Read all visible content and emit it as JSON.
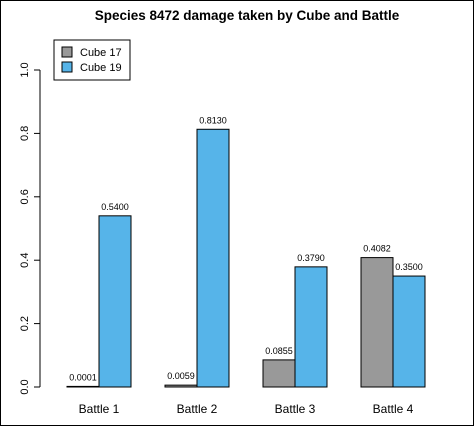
{
  "chart_data": {
    "type": "bar",
    "title": "Species 8472 damage taken by Cube and Battle",
    "xlabel": "",
    "ylabel": "",
    "categories": [
      "Battle 1",
      "Battle 2",
      "Battle 3",
      "Battle 4"
    ],
    "series": [
      {
        "name": "Cube 17",
        "color": "#999999",
        "values": [
          0.0001,
          0.0059,
          0.0855,
          0.4082
        ],
        "labels": [
          "0.0001",
          "0.0059",
          "0.0855",
          "0.4082"
        ]
      },
      {
        "name": "Cube 19",
        "color": "#56B4E9",
        "values": [
          0.54,
          0.813,
          0.379,
          0.35
        ],
        "labels": [
          "0.5400",
          "0.8130",
          "0.3790",
          "0.3500"
        ]
      }
    ],
    "ylim": [
      0,
      1.0
    ],
    "yticks": [
      0.0,
      0.2,
      0.4,
      0.6,
      0.8,
      1.0
    ],
    "ytick_labels": [
      "0.0",
      "0.2",
      "0.4",
      "0.6",
      "0.8",
      "1.0"
    ],
    "legend_position": "top-left",
    "grid": false
  }
}
